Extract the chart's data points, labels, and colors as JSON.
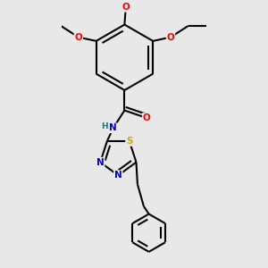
{
  "bg_color": "#e8e8e8",
  "bond_color": "#000000",
  "lw": 1.5,
  "atom_colors": {
    "O": "#ff0000",
    "N": "#0000cc",
    "S": "#ccaa00",
    "H": "#008080",
    "C": "#000000"
  },
  "figsize": [
    3.0,
    3.0
  ],
  "dpi": 100
}
